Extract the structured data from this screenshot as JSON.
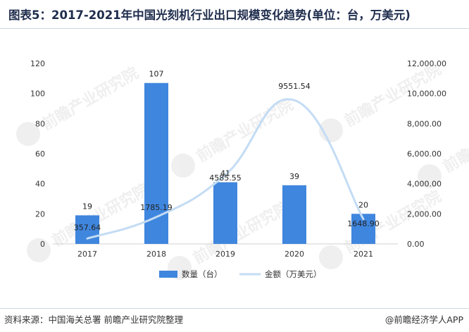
{
  "title": "图表5：2017-2021年中国光刻机行业出口规模变化趋势(单位：台，万美元)",
  "footer": {
    "source": "资料来源：中国海关总署 前瞻产业研究院整理",
    "brand": "@前瞻经济学人APP"
  },
  "watermark": "前瞻产业研究院",
  "colors": {
    "bar": "#3f86de",
    "line": "#c4dcf4",
    "title": "#1f2d4d"
  },
  "chart_data": {
    "type": "bar",
    "categories": [
      "2017",
      "2018",
      "2019",
      "2020",
      "2021"
    ],
    "series": [
      {
        "name": "数量（台）",
        "type": "bar",
        "axis": "left",
        "values": [
          19,
          107,
          41,
          39,
          20
        ]
      },
      {
        "name": "金额（万美元）",
        "type": "line",
        "axis": "right",
        "smooth": true,
        "values": [
          357.64,
          1785.19,
          4585.55,
          9551.54,
          1648.9
        ]
      }
    ],
    "bar_labels": [
      "19",
      "107",
      "41",
      "39",
      "20"
    ],
    "line_labels": [
      "357.64",
      "1785.19",
      "4585.55",
      "9551.54",
      "1648.90"
    ],
    "y_left": {
      "min": 0,
      "max": 120,
      "ticks": [
        0,
        20,
        40,
        60,
        80,
        100,
        120
      ],
      "tick_labels": [
        "0",
        "20",
        "40",
        "60",
        "80",
        "100",
        "120"
      ]
    },
    "y_right": {
      "min": 0,
      "max": 12000,
      "ticks": [
        0,
        2000,
        4000,
        6000,
        8000,
        10000,
        12000
      ],
      "tick_labels": [
        "0.00",
        "2,000.00",
        "4,000.00",
        "6,000.00",
        "8,000.00",
        "10,000.00",
        "12,000.00"
      ]
    },
    "grid": false,
    "legend_position": "bottom"
  }
}
